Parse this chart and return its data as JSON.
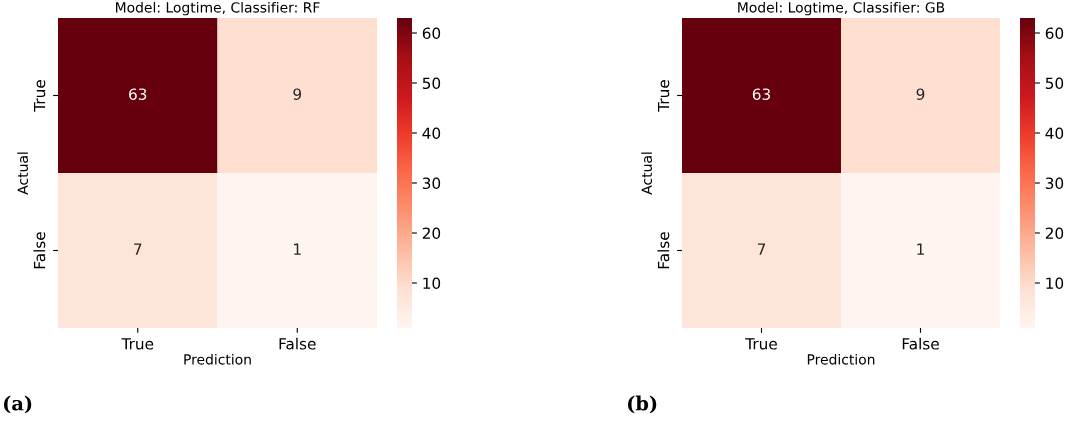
{
  "chart_data": [
    {
      "type": "heatmap",
      "title": "Model: Logtime, Classifier: RF",
      "xlabel": "Prediction",
      "ylabel": "Actual",
      "categories": [
        "True",
        "False"
      ],
      "y_categories": [
        "True",
        "False"
      ],
      "cells": [
        [
          63,
          9
        ],
        [
          7,
          1
        ]
      ],
      "clim": [
        1,
        63
      ],
      "cticks": [
        10,
        20,
        30,
        40,
        50,
        60
      ],
      "data_labels": true,
      "annotations": [
        "(a)"
      ]
    },
    {
      "type": "heatmap",
      "title": "Model: Logtime, Classifier: GB",
      "xlabel": "Prediction",
      "ylabel": "Actual",
      "categories": [
        "True",
        "False"
      ],
      "y_categories": [
        "True",
        "False"
      ],
      "cells": [
        [
          63,
          9
        ],
        [
          7,
          1
        ]
      ],
      "clim": [
        1,
        63
      ],
      "cticks": [
        10,
        20,
        30,
        40,
        50,
        60
      ],
      "data_labels": true,
      "annotations": [
        "(b)"
      ]
    }
  ]
}
